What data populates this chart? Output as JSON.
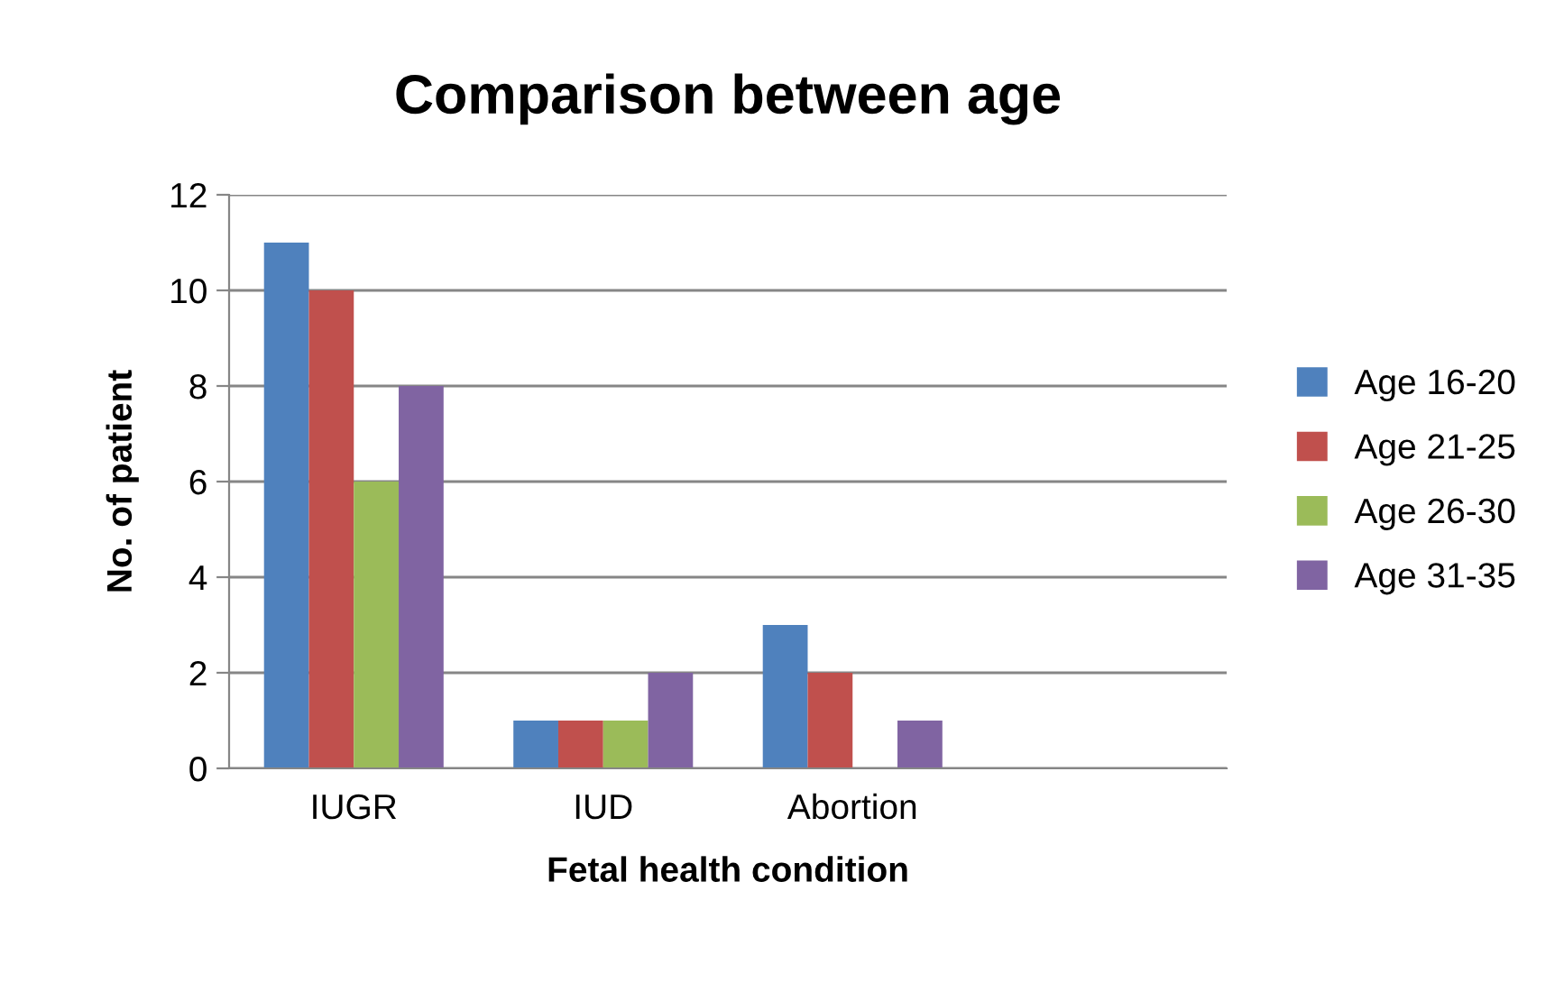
{
  "chart_data": {
    "type": "bar",
    "title": "Comparison between age",
    "xlabel": "Fetal health condition",
    "ylabel": "No. of patient",
    "categories": [
      "IUGR",
      "IUD",
      "Abortion",
      null
    ],
    "series": [
      {
        "name": "Age 16-20",
        "color": "#4f81bd",
        "values": [
          11,
          1,
          3,
          null
        ]
      },
      {
        "name": "Age 21-25",
        "color": "#c0504d",
        "values": [
          10,
          1,
          2,
          null
        ]
      },
      {
        "name": "Age 26-30",
        "color": "#9bbb59",
        "values": [
          6,
          1,
          0,
          null
        ]
      },
      {
        "name": "Age 31-35",
        "color": "#8064a2",
        "values": [
          8,
          2,
          1,
          null
        ]
      }
    ],
    "ylim": [
      0,
      12
    ],
    "yticks": [
      0,
      2,
      4,
      6,
      8,
      10,
      12
    ],
    "grid": "y",
    "legend": "right"
  }
}
